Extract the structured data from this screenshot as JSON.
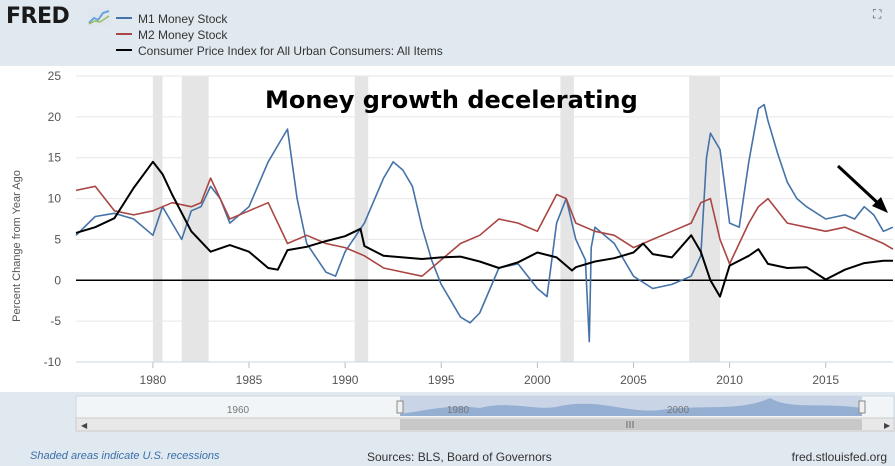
{
  "header": {
    "logo_text": "FRED",
    "logo_icon": "chart-line-icon",
    "fullscreen_icon": "fullscreen-icon"
  },
  "legend": [
    {
      "label": "M1 Money Stock",
      "color": "#4572a7"
    },
    {
      "label": "M2 Money Stock",
      "color": "#aa4643"
    },
    {
      "label": "Consumer Price Index for All Urban Consumers: All Items",
      "color": "#000000"
    }
  ],
  "annotation": "Money growth decelerating",
  "footer": {
    "recession_note": "Shaded areas indicate U.S. recessions",
    "sources": "Sources: BLS, Board of Governors",
    "site": "fred.stlouisfed.org"
  },
  "navigator": {
    "labels": [
      "1960",
      "1980",
      "2000"
    ]
  },
  "chart_data": {
    "type": "line",
    "ylabel": "Percent Change from Year Ago",
    "xlim": [
      1976.0,
      2018.5
    ],
    "ylim": [
      -10,
      25
    ],
    "y_ticks": [
      25,
      20,
      15,
      10,
      5,
      0,
      -5,
      -10
    ],
    "x_ticks": [
      1980,
      1985,
      1990,
      1995,
      2000,
      2005,
      2010,
      2015
    ],
    "recessions": [
      [
        1980.0,
        1980.5
      ],
      [
        1981.5,
        1982.9
      ],
      [
        1990.5,
        1991.2
      ],
      [
        2001.2,
        2001.9
      ],
      [
        2007.9,
        2009.5
      ]
    ],
    "series": [
      {
        "name": "M1 Money Stock",
        "color": "#4572a7",
        "x": [
          1976.0,
          1977.0,
          1978.0,
          1979.0,
          1980.0,
          1980.5,
          1981.0,
          1981.5,
          1982.0,
          1982.5,
          1983.0,
          1983.5,
          1984.0,
          1985.0,
          1986.0,
          1986.5,
          1987.0,
          1987.5,
          1988.0,
          1989.0,
          1989.5,
          1990.0,
          1991.0,
          1992.0,
          1992.5,
          1993.0,
          1993.5,
          1994.0,
          1994.5,
          1995.0,
          1995.5,
          1996.0,
          1996.5,
          1997.0,
          1998.0,
          1999.0,
          2000.0,
          2000.5,
          2001.0,
          2001.5,
          2002.0,
          2002.5,
          2002.7,
          2002.8,
          2003.0,
          2004.0,
          2005.0,
          2006.0,
          2007.0,
          2008.0,
          2008.5,
          2008.8,
          2009.0,
          2009.5,
          2010.0,
          2010.5,
          2011.0,
          2011.5,
          2011.8,
          2012.0,
          2012.5,
          2013.0,
          2013.5,
          2014.0,
          2015.0,
          2016.0,
          2016.5,
          2017.0,
          2017.5,
          2018.0,
          2018.5
        ],
        "values": [
          5.5,
          7.8,
          8.2,
          7.5,
          5.5,
          9.0,
          7.0,
          5.0,
          8.5,
          9.0,
          11.5,
          10.0,
          7.0,
          9.0,
          14.5,
          16.5,
          18.5,
          10.0,
          4.5,
          1.0,
          0.5,
          3.5,
          7.0,
          12.5,
          14.5,
          13.5,
          11.5,
          6.5,
          2.5,
          -0.5,
          -2.5,
          -4.5,
          -5.2,
          -4.0,
          1.5,
          2.0,
          -1.0,
          -2.0,
          7.0,
          10.0,
          5.0,
          2.5,
          -7.5,
          4.0,
          6.5,
          4.5,
          0.5,
          -1.0,
          -0.5,
          0.5,
          3.0,
          15.0,
          18.0,
          16.0,
          7.0,
          6.5,
          14.5,
          21.0,
          21.5,
          19.5,
          15.5,
          12.0,
          10.0,
          9.0,
          7.5,
          8.0,
          7.5,
          9.0,
          8.0,
          6.0,
          6.5
        ]
      },
      {
        "name": "M2 Money Stock",
        "color": "#aa4643",
        "x": [
          1976.0,
          1977.0,
          1978.0,
          1979.0,
          1980.0,
          1981.0,
          1982.0,
          1982.5,
          1983.0,
          1983.5,
          1984.0,
          1985.0,
          1986.0,
          1987.0,
          1988.0,
          1989.0,
          1990.0,
          1991.0,
          1992.0,
          1993.0,
          1994.0,
          1995.0,
          1996.0,
          1997.0,
          1998.0,
          1999.0,
          2000.0,
          2001.0,
          2001.5,
          2002.0,
          2003.0,
          2004.0,
          2005.0,
          2006.0,
          2007.0,
          2008.0,
          2008.5,
          2009.0,
          2009.5,
          2010.0,
          2011.0,
          2011.5,
          2012.0,
          2013.0,
          2014.0,
          2015.0,
          2016.0,
          2017.0,
          2018.0,
          2018.5
        ],
        "values": [
          11.0,
          11.5,
          8.5,
          8.0,
          8.5,
          9.5,
          9.0,
          9.5,
          12.5,
          10.0,
          7.5,
          8.5,
          9.5,
          4.5,
          5.5,
          4.5,
          4.0,
          3.0,
          1.5,
          1.0,
          0.5,
          2.5,
          4.5,
          5.5,
          7.5,
          7.0,
          6.0,
          10.5,
          10.0,
          7.0,
          6.0,
          5.5,
          4.0,
          5.0,
          6.0,
          7.0,
          9.5,
          10.0,
          5.0,
          2.0,
          7.0,
          9.0,
          10.0,
          7.0,
          6.5,
          6.0,
          6.5,
          5.5,
          4.5,
          3.8
        ]
      },
      {
        "name": "Consumer Price Index for All Urban Consumers: All Items",
        "color": "#000000",
        "x": [
          1976.0,
          1977.0,
          1978.0,
          1979.0,
          1980.0,
          1980.5,
          1981.0,
          1982.0,
          1983.0,
          1984.0,
          1985.0,
          1986.0,
          1986.5,
          1987.0,
          1988.0,
          1989.0,
          1990.0,
          1990.8,
          1991.0,
          1992.0,
          1993.0,
          1994.0,
          1995.0,
          1996.0,
          1997.0,
          1998.0,
          1999.0,
          2000.0,
          2001.0,
          2001.8,
          2002.0,
          2003.0,
          2004.0,
          2005.0,
          2005.5,
          2006.0,
          2007.0,
          2008.0,
          2008.5,
          2009.0,
          2009.5,
          2010.0,
          2011.0,
          2011.5,
          2012.0,
          2013.0,
          2014.0,
          2015.0,
          2016.0,
          2017.0,
          2018.0,
          2018.5
        ],
        "values": [
          5.8,
          6.5,
          7.6,
          11.3,
          14.5,
          13.0,
          10.5,
          6.0,
          3.5,
          4.3,
          3.5,
          1.5,
          1.3,
          3.7,
          4.1,
          4.8,
          5.4,
          6.3,
          4.2,
          3.0,
          2.8,
          2.6,
          2.8,
          2.9,
          2.3,
          1.5,
          2.2,
          3.4,
          2.8,
          1.2,
          1.6,
          2.3,
          2.7,
          3.4,
          4.5,
          3.2,
          2.8,
          5.5,
          3.5,
          0.0,
          -2.0,
          1.8,
          3.0,
          3.8,
          2.0,
          1.5,
          1.6,
          0.1,
          1.3,
          2.1,
          2.4,
          2.4
        ]
      }
    ]
  }
}
